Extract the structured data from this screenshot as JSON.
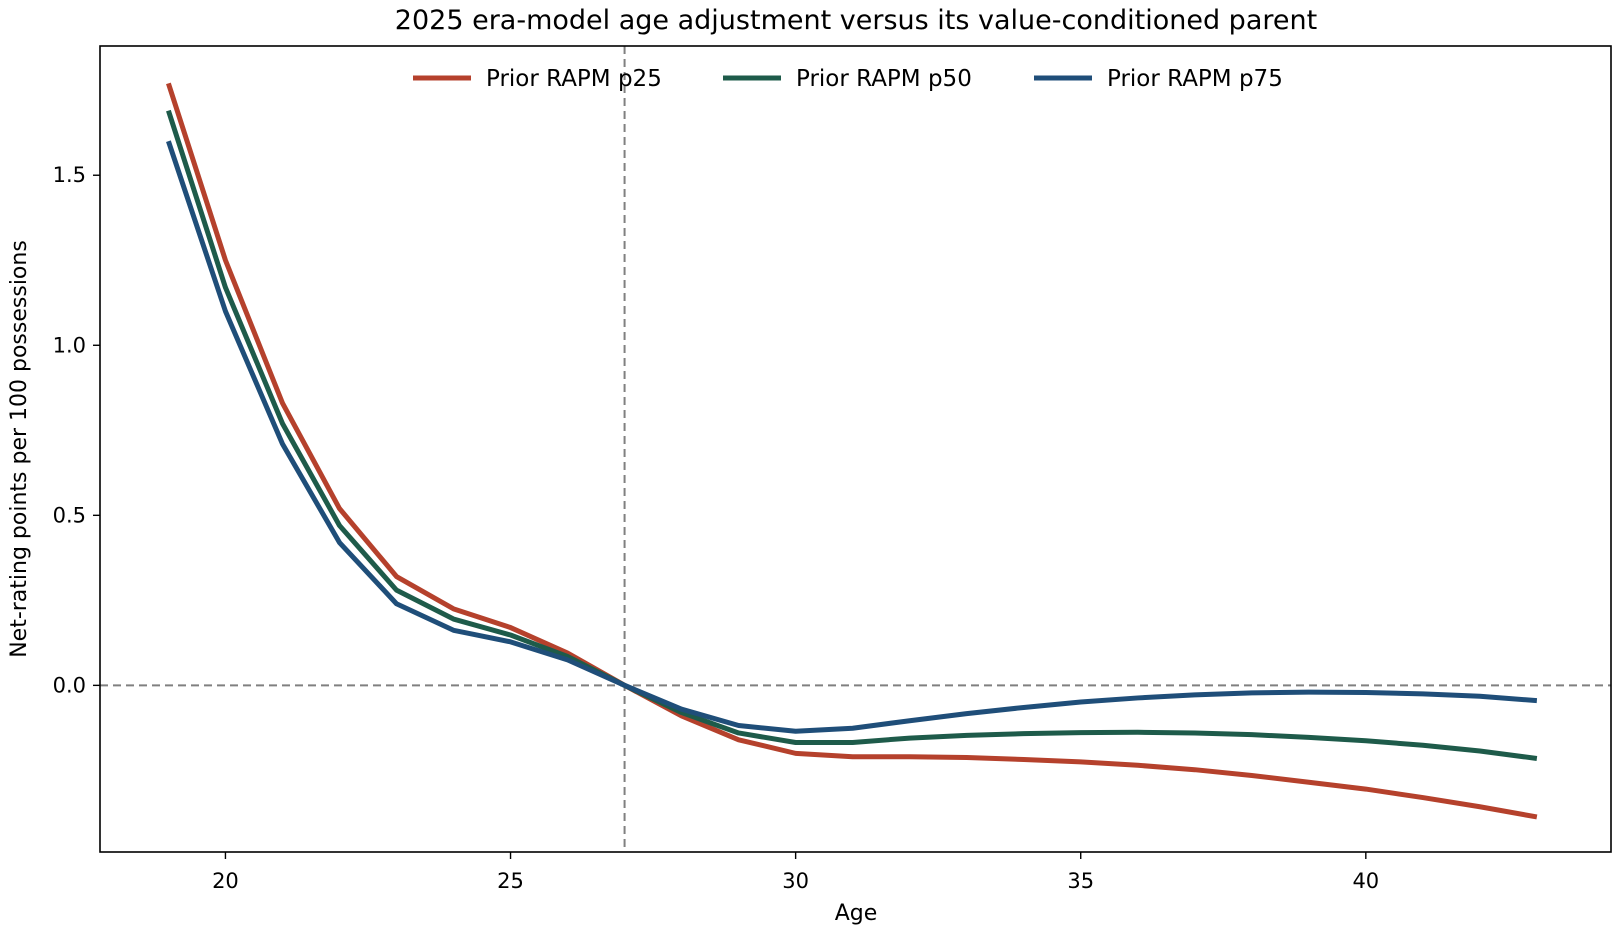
{
  "chart_data": {
    "type": "line",
    "title": "2025 era-model age adjustment versus its value-conditioned parent",
    "xlabel": "Age",
    "ylabel": "Net-rating points per 100 possessions",
    "xlim": [
      17.8,
      44.3
    ],
    "ylim": [
      -0.49,
      1.88
    ],
    "x_ticks": [
      20,
      25,
      30,
      35,
      40
    ],
    "y_ticks": [
      0.0,
      0.5,
      1.0,
      1.5
    ],
    "x_tick_labels": [
      "20",
      "25",
      "30",
      "35",
      "40"
    ],
    "y_tick_labels": [
      "0.0",
      "0.5",
      "1.0",
      "1.5"
    ],
    "reference_lines": {
      "vertical_x": 27,
      "horizontal_y": 0
    },
    "legend_position": "top-center",
    "grid": false,
    "x": [
      19,
      20,
      21,
      22,
      23,
      24,
      25,
      26,
      27,
      28,
      29,
      30,
      31,
      32,
      33,
      34,
      35,
      36,
      37,
      38,
      39,
      40,
      41,
      42,
      43
    ],
    "series": [
      {
        "name": "Prior RAPM p25",
        "color": "#b5412c",
        "values": [
          1.77,
          1.25,
          0.83,
          0.52,
          0.32,
          0.225,
          0.17,
          0.095,
          0.0,
          -0.09,
          -0.16,
          -0.2,
          -0.21,
          -0.21,
          -0.212,
          -0.218,
          -0.225,
          -0.235,
          -0.248,
          -0.265,
          -0.285,
          -0.305,
          -0.33,
          -0.357,
          -0.387
        ]
      },
      {
        "name": "Prior RAPM p50",
        "color": "#1e5b4a",
        "values": [
          1.69,
          1.17,
          0.77,
          0.47,
          0.28,
          0.195,
          0.148,
          0.085,
          0.0,
          -0.08,
          -0.14,
          -0.168,
          -0.168,
          -0.155,
          -0.147,
          -0.142,
          -0.139,
          -0.138,
          -0.14,
          -0.145,
          -0.153,
          -0.163,
          -0.176,
          -0.193,
          -0.215
        ]
      },
      {
        "name": "Prior RAPM p75",
        "color": "#1f4e79",
        "values": [
          1.6,
          1.1,
          0.71,
          0.42,
          0.24,
          0.162,
          0.128,
          0.075,
          0.0,
          -0.07,
          -0.118,
          -0.135,
          -0.126,
          -0.104,
          -0.083,
          -0.065,
          -0.049,
          -0.037,
          -0.028,
          -0.022,
          -0.02,
          -0.021,
          -0.025,
          -0.032,
          -0.045
        ]
      }
    ]
  }
}
